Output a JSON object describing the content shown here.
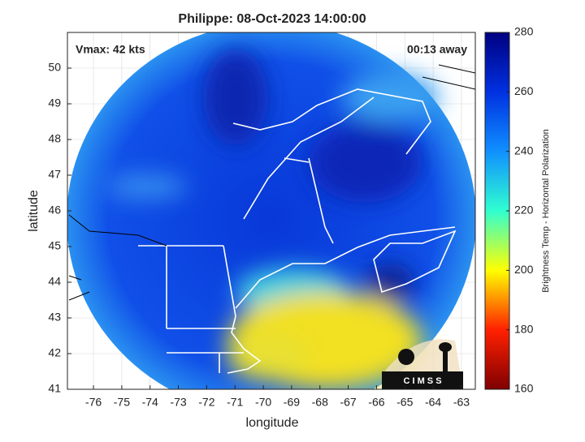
{
  "chart_data": {
    "type": "map",
    "title": "Philippe: 08-Oct-2023 14:00:00",
    "annotations": [
      "Vmax: 42 kts",
      "00:13 away"
    ],
    "xlabel": "longitude",
    "ylabel": "latitude",
    "xlim": [
      -76.92,
      -62.51
    ],
    "ylim": [
      41,
      51
    ],
    "xticks": [
      -76,
      -75,
      -74,
      -73,
      -72,
      -71,
      -70,
      -69,
      -68,
      -67,
      -66,
      -65,
      -64,
      -63
    ],
    "yticks": [
      41,
      42,
      43,
      44,
      45,
      46,
      47,
      48,
      49,
      50
    ],
    "grid": true,
    "colorbar": {
      "label": "Brightness Temp - Horizontal Polarization",
      "lim": [
        160,
        280
      ],
      "ticks": [
        160,
        180,
        200,
        220,
        240,
        260,
        280
      ],
      "colormap": [
        "#7f0000",
        "#ff2000",
        "#ffff00",
        "#30ffd0",
        "#1090ff",
        "#0030e0",
        "#000080"
      ]
    },
    "logo": "C I M S S"
  }
}
